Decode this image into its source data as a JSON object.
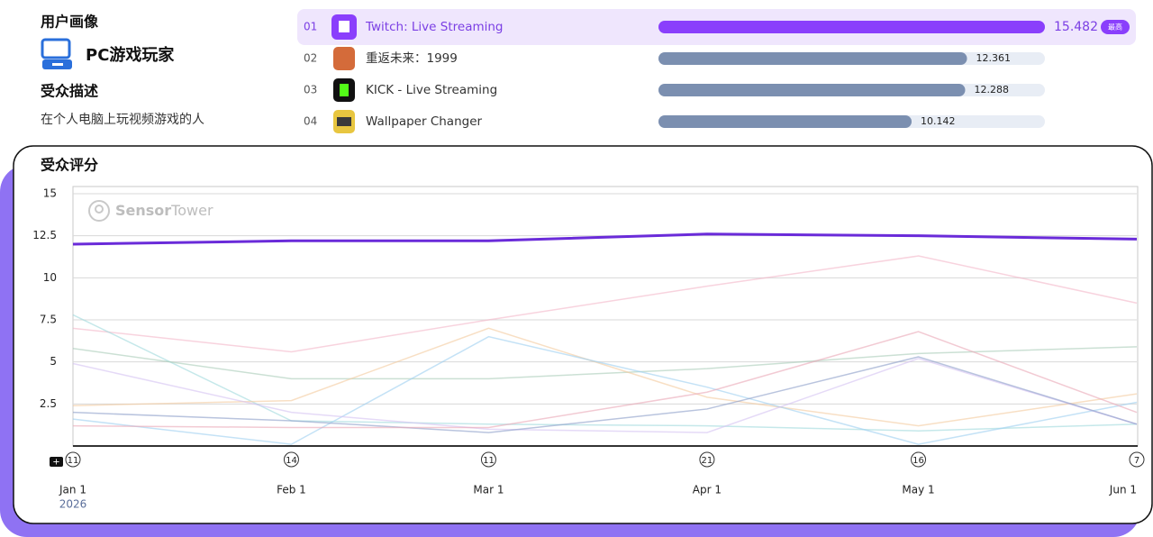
{
  "profile": {
    "heading": "用户画像",
    "persona": "PC游戏玩家",
    "description_heading": "受众描述",
    "description": "在个人电脑上玩视频游戏的人"
  },
  "ranking": {
    "rows": [
      {
        "rank": "01",
        "name": "Twitch: Live Streaming",
        "value": 15.482,
        "badge": "最高"
      },
      {
        "rank": "02",
        "name": "重返未来：1999",
        "value": 12.361
      },
      {
        "rank": "03",
        "name": "KICK - Live Streaming",
        "value": 12.288
      },
      {
        "rank": "04",
        "name": "Wallpaper Changer",
        "value": 10.142
      }
    ]
  },
  "chart_data": {
    "type": "line",
    "title": "受众评分",
    "watermark": {
      "bold": "Sensor",
      "light": "Tower"
    },
    "categories": [
      "Jan 1",
      "Feb 1",
      "Mar 1",
      "Apr 1",
      "May 1",
      "Jun 1"
    ],
    "year_label": "2026",
    "event_counts": [
      11,
      14,
      11,
      21,
      16,
      7
    ],
    "ylim": [
      0,
      15
    ],
    "yticks": [
      2.5,
      5,
      7.5,
      10,
      12.5,
      15
    ],
    "grid": true,
    "series": [
      {
        "color": "#f4b6c8",
        "values": [
          7,
          5.6,
          7.5,
          9.5,
          11.3,
          8.5
        ]
      },
      {
        "color": "#9fd8dc",
        "values": [
          7.8,
          1.5,
          1.3,
          1.2,
          0.9,
          1.3
        ]
      },
      {
        "color": "#a9cbb8",
        "values": [
          5.8,
          4.0,
          4.0,
          4.6,
          5.5,
          5.9
        ]
      },
      {
        "color": "#f3c99c",
        "values": [
          2.4,
          2.7,
          7.0,
          2.9,
          1.2,
          3.1
        ]
      },
      {
        "color": "#9ccff0",
        "values": [
          1.6,
          0.1,
          6.5,
          3.5,
          0.1,
          2.6
        ]
      },
      {
        "color": "#d4c2f2",
        "values": [
          4.9,
          2.0,
          1.0,
          0.8,
          5.2,
          1.3
        ]
      },
      {
        "color": "#8a9cc8",
        "values": [
          2.0,
          1.5,
          0.8,
          2.2,
          5.3,
          1.3
        ]
      },
      {
        "color": "#e9a6b6",
        "values": [
          1.2,
          1.1,
          1.1,
          3.2,
          6.8,
          2.0
        ]
      },
      {
        "color": "#6a2bd9",
        "values": [
          12.0,
          12.2,
          12.2,
          12.6,
          12.5,
          12.3
        ]
      }
    ]
  }
}
